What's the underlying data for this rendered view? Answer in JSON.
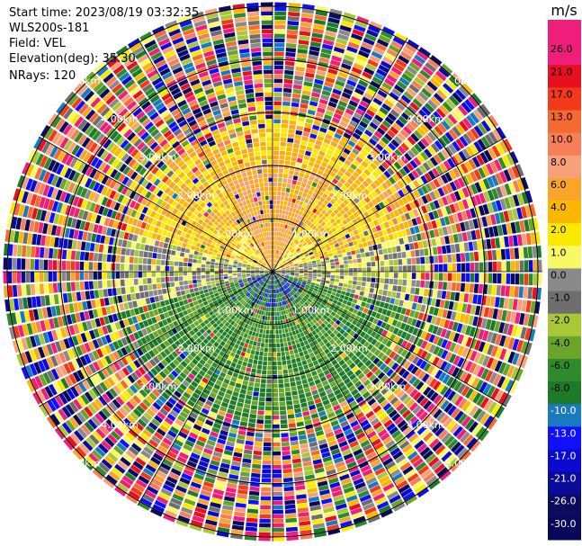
{
  "info": {
    "start_time": "Start time: 2023/08/19 03:32:35",
    "instrument": "WLS200s-181",
    "field": "Field: VEL",
    "elevation": "Elevation(deg): 35.30",
    "nrays": "NRays: 120"
  },
  "colorbar": {
    "unit": "m/s",
    "ticks": [
      "26.0",
      "21.0",
      "17.0",
      "13.0",
      "10.0",
      "8.0",
      "6.0",
      "4.0",
      "2.0",
      "1.0",
      "0.0",
      "-1.0",
      "-2.0",
      "-4.0",
      "-6.0",
      "-8.0",
      "-10.0",
      "-13.0",
      "-17.0",
      "-21.0",
      "-26.0",
      "-30.0"
    ],
    "colors": [
      "#ee1e7a",
      "#ee1e7a",
      "#e8101e",
      "#f23a1a",
      "#f56a30",
      "#f67e58",
      "#f8a07a",
      "#f9a52a",
      "#fbb800",
      "#fbe900",
      "#f9f966",
      "#8a8a8a",
      "#6e6e6e",
      "#a8c838",
      "#6aa428",
      "#2e8a2a",
      "#1c7a28",
      "#1a7ac0",
      "#1010ff",
      "#0b0bd0",
      "#0b0b9a",
      "#0b0b60",
      "#08085a"
    ]
  },
  "range_labels": [
    "1.00km",
    "2.00km",
    "3.00km",
    "4.00km",
    "5.00km"
  ]
}
